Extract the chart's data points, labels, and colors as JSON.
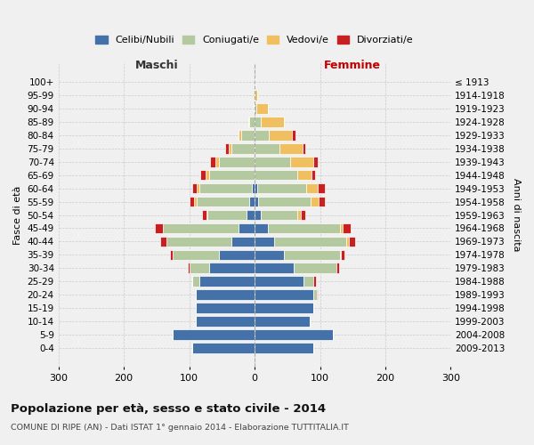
{
  "age_groups": [
    "100+",
    "95-99",
    "90-94",
    "85-89",
    "80-84",
    "75-79",
    "70-74",
    "65-69",
    "60-64",
    "55-59",
    "50-54",
    "45-49",
    "40-44",
    "35-39",
    "30-34",
    "25-29",
    "20-24",
    "15-19",
    "10-14",
    "5-9",
    "0-4"
  ],
  "birth_years": [
    "≤ 1913",
    "1914-1918",
    "1919-1923",
    "1924-1928",
    "1929-1933",
    "1934-1938",
    "1939-1943",
    "1944-1948",
    "1949-1953",
    "1954-1958",
    "1959-1963",
    "1964-1968",
    "1969-1973",
    "1974-1978",
    "1979-1983",
    "1984-1988",
    "1989-1993",
    "1994-1998",
    "1999-2003",
    "2004-2008",
    "2009-2013"
  ],
  "maschi": {
    "celibi": [
      0,
      0,
      0,
      0,
      0,
      0,
      0,
      0,
      4,
      8,
      12,
      25,
      35,
      55,
      70,
      85,
      90,
      90,
      90,
      125,
      95
    ],
    "coniugati": [
      0,
      0,
      2,
      8,
      20,
      35,
      55,
      70,
      80,
      80,
      60,
      115,
      100,
      70,
      30,
      10,
      0,
      0,
      0,
      0,
      0
    ],
    "vedovi": [
      0,
      0,
      0,
      2,
      5,
      5,
      5,
      5,
      4,
      4,
      2,
      0,
      0,
      0,
      0,
      0,
      0,
      0,
      0,
      0,
      0
    ],
    "divorziati": [
      0,
      0,
      0,
      0,
      0,
      5,
      8,
      8,
      8,
      8,
      6,
      12,
      10,
      5,
      2,
      0,
      0,
      0,
      0,
      0,
      0
    ]
  },
  "femmine": {
    "nubili": [
      0,
      0,
      0,
      0,
      0,
      0,
      0,
      0,
      4,
      6,
      10,
      20,
      30,
      45,
      60,
      75,
      90,
      90,
      85,
      120,
      90
    ],
    "coniugate": [
      0,
      0,
      2,
      10,
      22,
      38,
      55,
      65,
      75,
      80,
      55,
      110,
      110,
      85,
      65,
      15,
      5,
      0,
      0,
      0,
      0
    ],
    "vedove": [
      1,
      4,
      18,
      35,
      35,
      35,
      35,
      22,
      18,
      12,
      6,
      5,
      4,
      2,
      0,
      0,
      0,
      0,
      0,
      0,
      0
    ],
    "divorziate": [
      0,
      0,
      0,
      0,
      5,
      5,
      6,
      6,
      10,
      10,
      6,
      12,
      10,
      5,
      4,
      4,
      2,
      0,
      0,
      0,
      0
    ]
  },
  "colors": {
    "celibi": "#4472a8",
    "coniugati": "#b5c9a0",
    "vedovi": "#f0c060",
    "divorziati": "#c82020"
  },
  "title": "Popolazione per età, sesso e stato civile - 2014",
  "subtitle": "COMUNE DI RIPE (AN) - Dati ISTAT 1° gennaio 2014 - Elaborazione TUTTITALIA.IT",
  "xlabel_left": "Maschi",
  "xlabel_right": "Femmine",
  "ylabel_left": "Fasce di età",
  "ylabel_right": "Anni di nascita",
  "xlim": 300,
  "legend_labels": [
    "Celibi/Nubili",
    "Coniugati/e",
    "Vedovi/e",
    "Divorziati/e"
  ],
  "bg_color": "#f0f0f0"
}
